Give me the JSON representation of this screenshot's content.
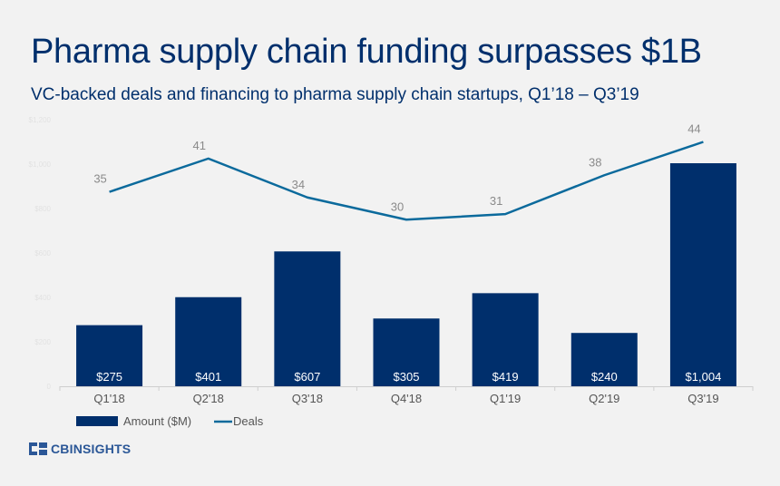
{
  "header": {
    "title": "Pharma supply chain funding surpasses $1B",
    "subtitle": "VC-backed deals and financing to pharma supply chain startups, Q1’18 – Q3’19"
  },
  "brand": {
    "logo_text": "CBINSIGHTS",
    "logo_icon": "cb-logo-icon"
  },
  "colors": {
    "bar": "#002f6c",
    "line": "#0b6a9c",
    "line_label": "#8a8a8a",
    "title": "#002f6c"
  },
  "chart_data": {
    "type": "bar",
    "categories": [
      "Q1'18",
      "Q2'18",
      "Q3'18",
      "Q4'18",
      "Q1'19",
      "Q2'19",
      "Q3'19"
    ],
    "series": [
      {
        "name": "Amount ($M)",
        "type": "bar",
        "values": [
          275,
          401,
          607,
          305,
          419,
          240,
          1004
        ],
        "labels": [
          "$275",
          "$401",
          "$607",
          "$305",
          "$419",
          "$240",
          "$1,004"
        ]
      },
      {
        "name": "Deals",
        "type": "line",
        "values": [
          35,
          41,
          34,
          30,
          31,
          38,
          44
        ]
      }
    ],
    "y_ticks": [
      "0",
      "$200",
      "$400",
      "$600",
      "$800",
      "$1,000",
      "$1,200"
    ],
    "ylim": [
      0,
      1200
    ],
    "y2lim": [
      0,
      48
    ],
    "legend": "bottom-left",
    "grid": false
  }
}
